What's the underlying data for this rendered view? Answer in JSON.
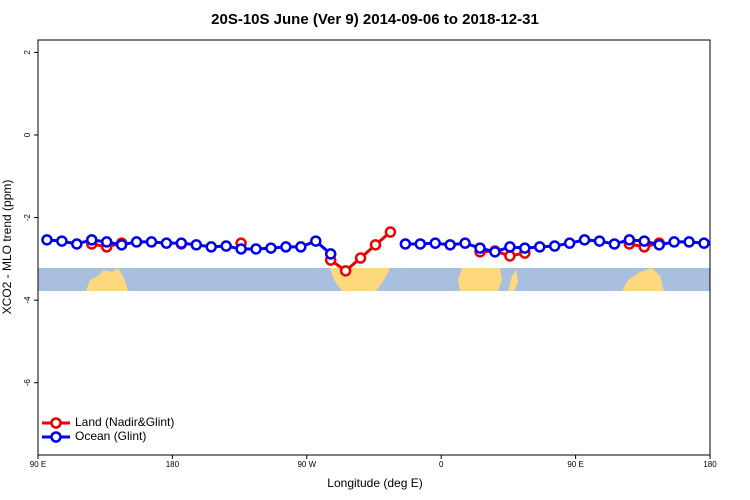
{
  "chart_data": {
    "type": "line",
    "title": "20S-10S June (Ver 9)   2014-09-06 to 2018-12-31",
    "x_label": "Longitude (deg E)",
    "y_label": "XCO2 - MLO trend (ppm)",
    "x": [
      96,
      106,
      116,
      126,
      136,
      146,
      156,
      166,
      176,
      186,
      196,
      206,
      216,
      226,
      236,
      246,
      256,
      266,
      276,
      286,
      296,
      306,
      316,
      326,
      336,
      346,
      356,
      366,
      376,
      386,
      396,
      406,
      416,
      426,
      436,
      446,
      456,
      466,
      476,
      486,
      496,
      506,
      516,
      526,
      536
    ],
    "series": [
      {
        "name": "Land (Nadir&Glint)",
        "color": "#ee0000",
        "values": [
          null,
          null,
          null,
          -2.64,
          -2.71,
          -2.62,
          null,
          null,
          null,
          -2.64,
          null,
          null,
          null,
          -2.62,
          null,
          null,
          null,
          null,
          null,
          -3.03,
          -3.29,
          -2.98,
          -2.66,
          -2.35,
          null,
          null,
          null,
          null,
          null,
          -2.83,
          -2.81,
          -2.93,
          -2.86,
          null,
          null,
          null,
          null,
          null,
          null,
          -2.64,
          -2.71,
          -2.62,
          null,
          null,
          null
        ]
      },
      {
        "name": "Ocean (Glint)",
        "color": "#0000ee",
        "values": [
          -2.54,
          -2.57,
          -2.64,
          -2.54,
          -2.59,
          -2.66,
          -2.59,
          -2.59,
          -2.62,
          -2.62,
          -2.66,
          -2.71,
          -2.69,
          -2.76,
          -2.76,
          -2.74,
          -2.71,
          -2.71,
          -2.57,
          -2.88,
          null,
          null,
          null,
          null,
          -2.64,
          -2.64,
          -2.62,
          -2.66,
          -2.62,
          -2.74,
          -2.83,
          -2.71,
          -2.74,
          -2.71,
          -2.69,
          -2.62,
          -2.54,
          -2.57,
          -2.64,
          -2.54,
          -2.57,
          -2.66,
          -2.59,
          -2.59,
          -2.62
        ]
      }
    ],
    "xlim": [
      90,
      540
    ],
    "ylim": [
      -7.75,
      2.3
    ],
    "xticks": [
      {
        "value": 90,
        "label": "90 E"
      },
      180,
      {
        "value": 270,
        "label": "90 W"
      },
      {
        "value": 360,
        "label": "0"
      },
      {
        "value": 450,
        "label": "90 E"
      },
      {
        "value": 540,
        "label": "180"
      }
    ],
    "yticks": [
      -6,
      -4,
      -2,
      0,
      2
    ],
    "legend": "bottom-left"
  }
}
